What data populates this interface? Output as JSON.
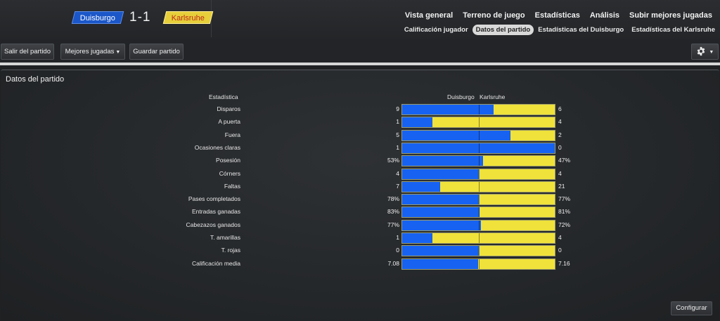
{
  "header": {
    "home_team": "Duisburgo",
    "away_team": "Karlsruhe",
    "score": "1-1",
    "nav_primary": [
      "Vista general",
      "Terreno de juego",
      "Estadísticas",
      "Análisis",
      "Subir mejores jugadas"
    ],
    "nav_secondary": [
      "Calificación jugador",
      "Datos del partido",
      "Estadísticas del Duisburgo",
      "Estadísticas del Karlsruhe"
    ],
    "active_tab": "Datos del partido"
  },
  "toolbar": {
    "exit_label": "Salir del partido",
    "highlights_label": "Mejores jugadas",
    "save_label": "Guardar partido",
    "settings_icon": "gear-icon"
  },
  "panel": {
    "title": "Datos del partido",
    "stat_header": "Estadística",
    "home_header": "Duisburgo",
    "away_header": "Karlsruhe",
    "configure_label": "Configurar"
  },
  "colors": {
    "home": "#1762f0",
    "away": "#f0e23a"
  },
  "stats": [
    {
      "label": "Disparos",
      "home": "9",
      "away": "6",
      "home_share": 0.6
    },
    {
      "label": "A puerta",
      "home": "1",
      "away": "4",
      "home_share": 0.2
    },
    {
      "label": "Fuera",
      "home": "5",
      "away": "2",
      "home_share": 0.71
    },
    {
      "label": "Ocasiones claras",
      "home": "1",
      "away": "0",
      "home_share": 1.0
    },
    {
      "label": "Posesión",
      "home": "53%",
      "away": "47%",
      "home_share": 0.53
    },
    {
      "label": "Córners",
      "home": "4",
      "away": "4",
      "home_share": 0.5
    },
    {
      "label": "Faltas",
      "home": "7",
      "away": "21",
      "home_share": 0.25
    },
    {
      "label": "Pases completados",
      "home": "78%",
      "away": "77%",
      "home_share": 0.503
    },
    {
      "label": "Entradas ganadas",
      "home": "83%",
      "away": "81%",
      "home_share": 0.506
    },
    {
      "label": "Cabezazos ganados",
      "home": "77%",
      "away": "72%",
      "home_share": 0.517
    },
    {
      "label": "T. amarillas",
      "home": "1",
      "away": "4",
      "home_share": 0.2
    },
    {
      "label": "T. rojas",
      "home": "0",
      "away": "0",
      "home_share": 0.5
    },
    {
      "label": "Calificación media",
      "home": "7.08",
      "away": "7.16",
      "home_share": 0.497
    }
  ]
}
